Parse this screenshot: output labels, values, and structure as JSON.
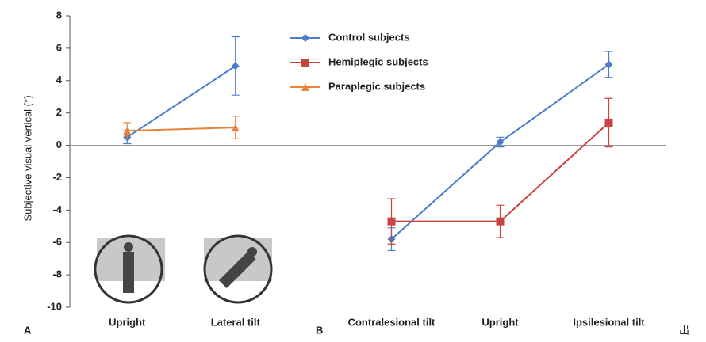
{
  "chart_data": [
    {
      "type": "line",
      "panel_label": "A",
      "y_label": "Subjective visual vertical (°)",
      "categories": [
        "Upright",
        "Lateral tilt"
      ],
      "ylim": [
        -10,
        8
      ],
      "yticks": [
        -10,
        -8,
        -6,
        -4,
        -2,
        0,
        2,
        4,
        6,
        8
      ],
      "series": [
        {
          "name": "Control subjects",
          "color": "#4a7cc9",
          "marker": "diamond",
          "values": [
            0.5,
            4.9
          ],
          "errors": [
            0.4,
            1.8
          ]
        },
        {
          "name": "Hemiplegic subjects",
          "color": "#c9433f",
          "marker": "square",
          "values": [
            null,
            null
          ],
          "errors": [
            null,
            null
          ]
        },
        {
          "name": "Paraplegic subjects",
          "color": "#e8843a",
          "marker": "triangle",
          "values": [
            0.9,
            1.1
          ],
          "errors": [
            0.5,
            0.7
          ]
        }
      ]
    },
    {
      "type": "line",
      "panel_label": "B",
      "categories": [
        "Contralesional tilt",
        "Upright",
        "Ipsilesional tilt"
      ],
      "ylim": [
        -10,
        8
      ],
      "series": [
        {
          "color": "#4a7cc9",
          "marker": "diamond",
          "values": [
            -5.8,
            0.2,
            5.0
          ],
          "errors": [
            0.7,
            0.3,
            0.8
          ]
        },
        {
          "color": "#c9433f",
          "marker": "square",
          "values": [
            -4.7,
            -4.7,
            1.4
          ],
          "errors": [
            1.4,
            1.0,
            1.5
          ]
        }
      ]
    }
  ],
  "extra_text": "出"
}
